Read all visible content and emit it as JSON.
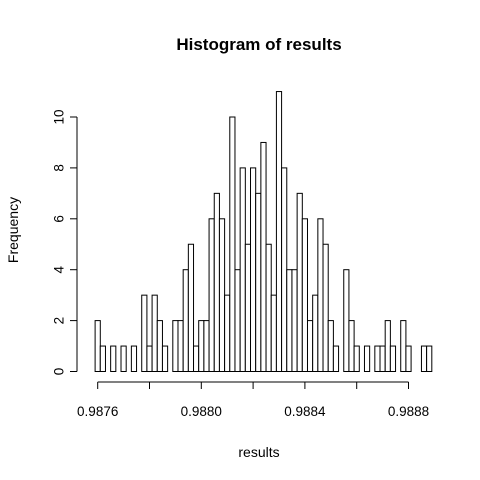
{
  "chart_data": {
    "type": "bar",
    "title": "Histogram of results",
    "xlabel": "results",
    "ylabel": "Frequency",
    "bin_start": 0.98759,
    "bin_width": 2e-05,
    "values": [
      2,
      1,
      0,
      1,
      0,
      1,
      0,
      1,
      0,
      3,
      1,
      3,
      2,
      1,
      0,
      2,
      2,
      4,
      5,
      1,
      2,
      2,
      6,
      7,
      6,
      3,
      10,
      4,
      8,
      5,
      8,
      7,
      9,
      5,
      3,
      11,
      8,
      4,
      4,
      7,
      6,
      2,
      3,
      6,
      5,
      2,
      1,
      0,
      4,
      2,
      1,
      0,
      1,
      0,
      1,
      1,
      2,
      1,
      0,
      2,
      1,
      0,
      0,
      1,
      1
    ],
    "xlim": [
      0.98758,
      0.98888
    ],
    "ylim": [
      0,
      11
    ],
    "x_ticks": [
      0.9876,
      0.988,
      0.9884,
      0.9888
    ],
    "x_tick_labels": [
      "0.9876",
      "0.9880",
      "0.9884",
      "0.9888"
    ],
    "x_minor_ticks": [
      0.9878,
      0.9882,
      0.9886
    ],
    "y_ticks": [
      0,
      2,
      4,
      6,
      8,
      10
    ],
    "y_tick_labels": [
      "0",
      "2",
      "4",
      "6",
      "8",
      "10"
    ],
    "grid": false,
    "legend": "none",
    "bar_fill": "#ffffff",
    "bar_stroke": "#000000"
  }
}
